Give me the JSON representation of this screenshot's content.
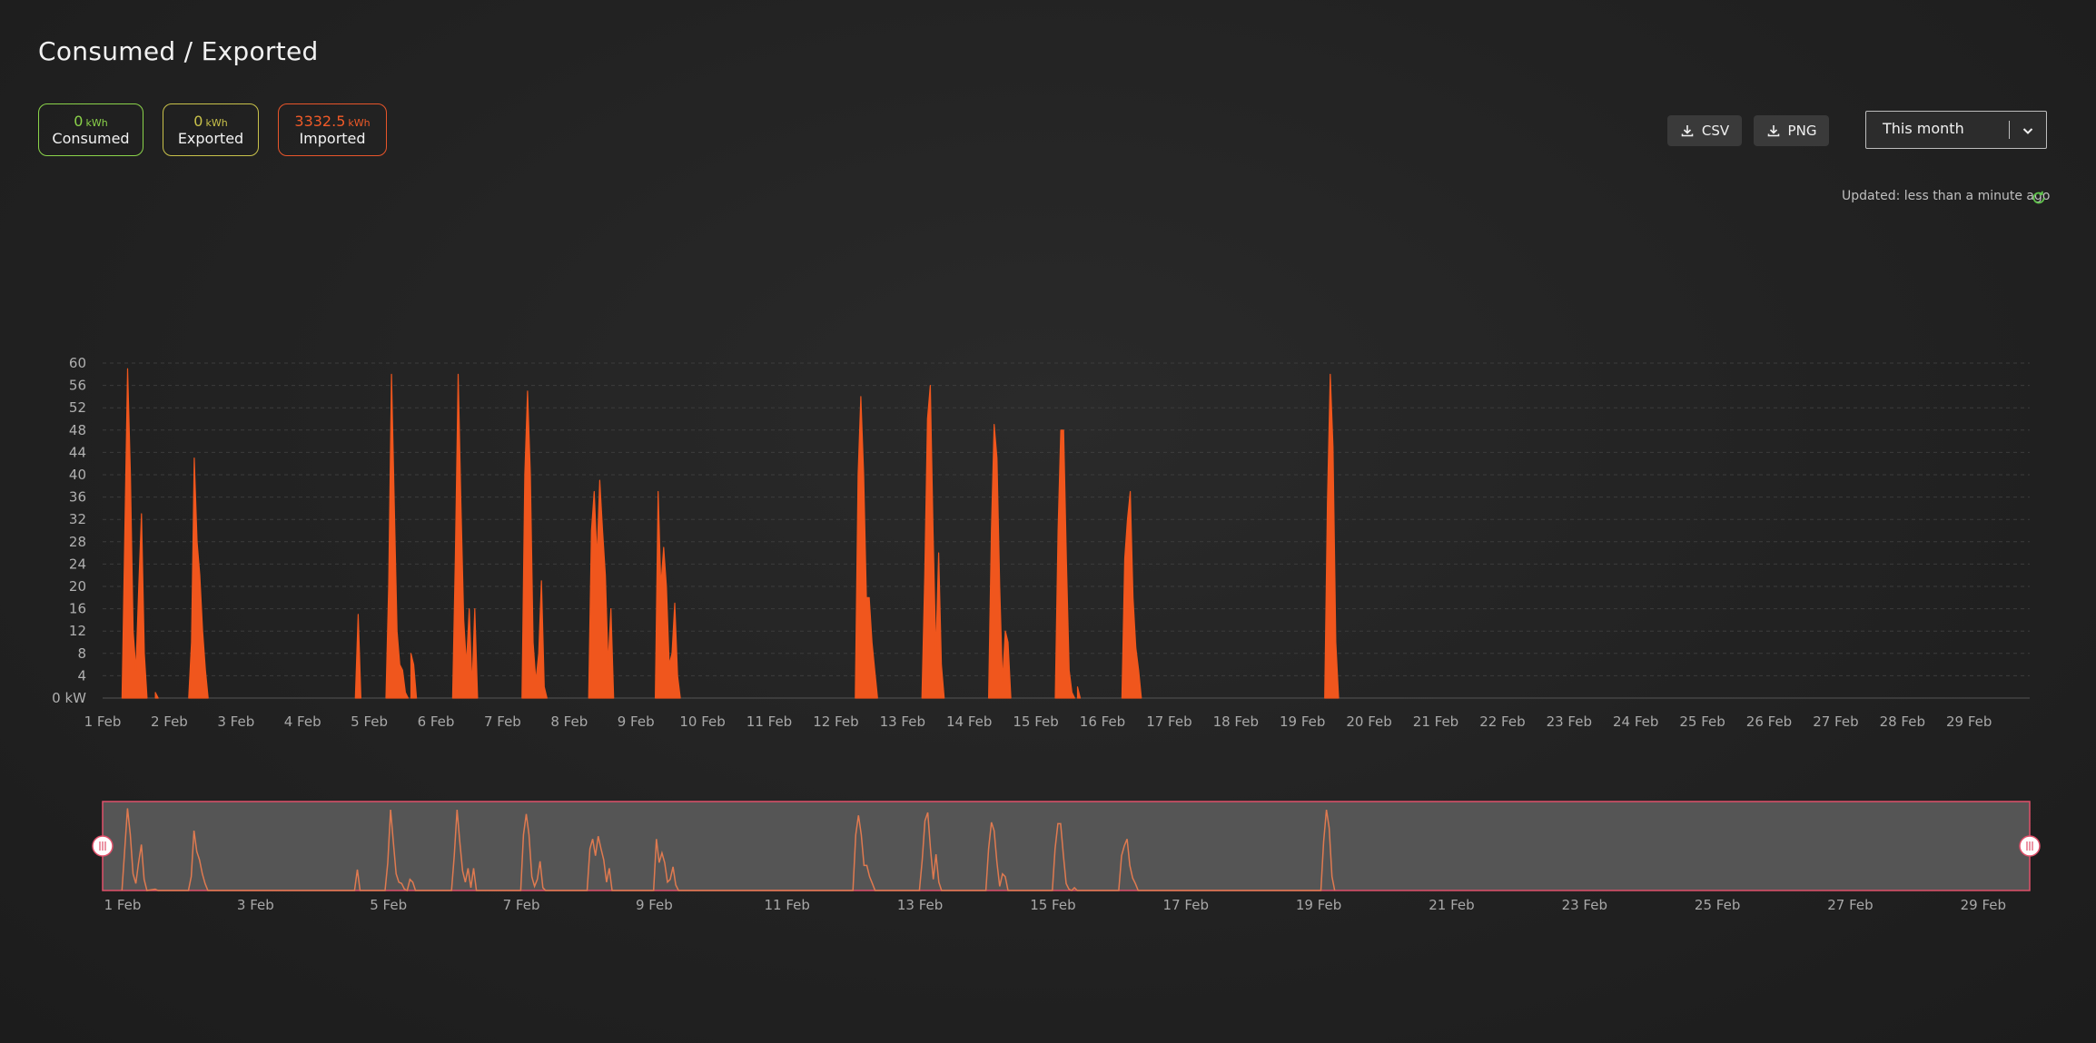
{
  "header": {
    "title": "Consumed / Exported"
  },
  "stats": [
    {
      "value": "0",
      "unit": "kWh",
      "label": "Consumed",
      "color": "#8bd34a"
    },
    {
      "value": "0",
      "unit": "kWh",
      "label": "Exported",
      "color": "#c9c24a"
    },
    {
      "value": "3332.5",
      "unit": "kWh",
      "label": "Imported",
      "color": "#f05a28"
    }
  ],
  "toolbar": {
    "csv_label": "CSV",
    "png_label": "PNG"
  },
  "period_select": {
    "value": "This month"
  },
  "status": {
    "updated": "Updated: less than a minute ago"
  },
  "colors": {
    "imported": "#f0561d",
    "scrollbar_border": "#e0506a",
    "refresh": "#5ec24a"
  },
  "chart_data": {
    "type": "area",
    "title": "",
    "xlabel": "",
    "ylabel": "",
    "y_unit": "kW",
    "ylim": [
      0,
      60
    ],
    "y_ticks": [
      "0 kW",
      "4",
      "8",
      "12",
      "16",
      "20",
      "24",
      "28",
      "32",
      "36",
      "40",
      "44",
      "48",
      "52",
      "56",
      "60"
    ],
    "x_ticks": [
      "1 Feb",
      "2 Feb",
      "3 Feb",
      "4 Feb",
      "5 Feb",
      "6 Feb",
      "7 Feb",
      "8 Feb",
      "9 Feb",
      "10 Feb",
      "11 Feb",
      "12 Feb",
      "13 Feb",
      "14 Feb",
      "15 Feb",
      "16 Feb",
      "17 Feb",
      "18 Feb",
      "19 Feb",
      "20 Feb",
      "21 Feb",
      "22 Feb",
      "23 Feb",
      "24 Feb",
      "25 Feb",
      "26 Feb",
      "27 Feb",
      "28 Feb",
      "29 Feb"
    ],
    "navigator_ticks": [
      "1 Feb",
      "3 Feb",
      "5 Feb",
      "7 Feb",
      "9 Feb",
      "11 Feb",
      "13 Feb",
      "15 Feb",
      "17 Feb",
      "19 Feb",
      "21 Feb",
      "23 Feb",
      "25 Feb",
      "27 Feb",
      "29 Feb"
    ],
    "grid": true,
    "legend": "none",
    "series": [
      {
        "name": "Imported",
        "points": [
          [
            "1 Feb 07:00",
            0
          ],
          [
            "1 Feb 08:00",
            30
          ],
          [
            "1 Feb 09:00",
            59
          ],
          [
            "1 Feb 10:00",
            40
          ],
          [
            "1 Feb 11:00",
            12
          ],
          [
            "1 Feb 12:00",
            5
          ],
          [
            "1 Feb 13:00",
            20
          ],
          [
            "1 Feb 14:00",
            33
          ],
          [
            "1 Feb 15:00",
            8
          ],
          [
            "1 Feb 16:00",
            0
          ],
          [
            "1 Feb 19:00",
            1
          ],
          [
            "1 Feb 20:00",
            0
          ],
          [
            "2 Feb 07:00",
            0
          ],
          [
            "2 Feb 08:00",
            10
          ],
          [
            "2 Feb 09:00",
            43
          ],
          [
            "2 Feb 10:00",
            28
          ],
          [
            "2 Feb 11:00",
            22
          ],
          [
            "2 Feb 12:00",
            12
          ],
          [
            "2 Feb 13:00",
            5
          ],
          [
            "2 Feb 14:00",
            0
          ],
          [
            "4 Feb 19:00",
            0
          ],
          [
            "4 Feb 20:00",
            15
          ],
          [
            "4 Feb 21:00",
            0
          ],
          [
            "5 Feb 06:00",
            0
          ],
          [
            "5 Feb 07:00",
            20
          ],
          [
            "5 Feb 08:00",
            58
          ],
          [
            "5 Feb 09:00",
            35
          ],
          [
            "5 Feb 10:00",
            12
          ],
          [
            "5 Feb 11:00",
            6
          ],
          [
            "5 Feb 12:00",
            5
          ],
          [
            "5 Feb 13:00",
            1
          ],
          [
            "5 Feb 14:00",
            0
          ],
          [
            "5 Feb 15:00",
            8
          ],
          [
            "5 Feb 16:00",
            6
          ],
          [
            "5 Feb 17:00",
            0
          ],
          [
            "6 Feb 06:00",
            0
          ],
          [
            "6 Feb 07:00",
            25
          ],
          [
            "6 Feb 08:00",
            58
          ],
          [
            "6 Feb 09:00",
            35
          ],
          [
            "6 Feb 10:00",
            14
          ],
          [
            "6 Feb 11:00",
            6
          ],
          [
            "6 Feb 12:00",
            16
          ],
          [
            "6 Feb 13:00",
            2
          ],
          [
            "6 Feb 14:00",
            16
          ],
          [
            "6 Feb 15:00",
            0
          ],
          [
            "7 Feb 07:00",
            0
          ],
          [
            "7 Feb 08:00",
            40
          ],
          [
            "7 Feb 09:00",
            55
          ],
          [
            "7 Feb 10:00",
            40
          ],
          [
            "7 Feb 11:00",
            10
          ],
          [
            "7 Feb 12:00",
            3
          ],
          [
            "7 Feb 13:00",
            8
          ],
          [
            "7 Feb 14:00",
            21
          ],
          [
            "7 Feb 15:00",
            2
          ],
          [
            "7 Feb 16:00",
            0
          ],
          [
            "8 Feb 07:00",
            0
          ],
          [
            "8 Feb 08:00",
            30
          ],
          [
            "8 Feb 09:00",
            37
          ],
          [
            "8 Feb 10:00",
            25
          ],
          [
            "8 Feb 11:00",
            39
          ],
          [
            "8 Feb 12:00",
            30
          ],
          [
            "8 Feb 13:00",
            22
          ],
          [
            "8 Feb 14:00",
            6
          ],
          [
            "8 Feb 15:00",
            16
          ],
          [
            "8 Feb 16:00",
            0
          ],
          [
            "9 Feb 07:00",
            0
          ],
          [
            "9 Feb 08:00",
            37
          ],
          [
            "9 Feb 09:00",
            20
          ],
          [
            "9 Feb 10:00",
            27
          ],
          [
            "9 Feb 11:00",
            20
          ],
          [
            "9 Feb 12:00",
            6
          ],
          [
            "9 Feb 13:00",
            8
          ],
          [
            "9 Feb 14:00",
            17
          ],
          [
            "9 Feb 15:00",
            4
          ],
          [
            "9 Feb 16:00",
            0
          ],
          [
            "12 Feb 07:00",
            0
          ],
          [
            "12 Feb 08:00",
            40
          ],
          [
            "12 Feb 09:00",
            54
          ],
          [
            "12 Feb 10:00",
            40
          ],
          [
            "12 Feb 11:00",
            18
          ],
          [
            "12 Feb 12:00",
            18
          ],
          [
            "12 Feb 13:00",
            10
          ],
          [
            "12 Feb 14:00",
            5
          ],
          [
            "12 Feb 15:00",
            0
          ],
          [
            "13 Feb 07:00",
            0
          ],
          [
            "13 Feb 08:00",
            22
          ],
          [
            "13 Feb 09:00",
            50
          ],
          [
            "13 Feb 10:00",
            56
          ],
          [
            "13 Feb 11:00",
            30
          ],
          [
            "13 Feb 12:00",
            8
          ],
          [
            "13 Feb 13:00",
            26
          ],
          [
            "13 Feb 14:00",
            6
          ],
          [
            "13 Feb 15:00",
            0
          ],
          [
            "14 Feb 07:00",
            0
          ],
          [
            "14 Feb 08:00",
            30
          ],
          [
            "14 Feb 09:00",
            49
          ],
          [
            "14 Feb 10:00",
            43
          ],
          [
            "14 Feb 11:00",
            20
          ],
          [
            "14 Feb 12:00",
            3
          ],
          [
            "14 Feb 13:00",
            12
          ],
          [
            "14 Feb 14:00",
            10
          ],
          [
            "14 Feb 15:00",
            0
          ],
          [
            "15 Feb 07:00",
            0
          ],
          [
            "15 Feb 08:00",
            30
          ],
          [
            "15 Feb 09:00",
            48
          ],
          [
            "15 Feb 10:00",
            48
          ],
          [
            "15 Feb 11:00",
            25
          ],
          [
            "15 Feb 12:00",
            5
          ],
          [
            "15 Feb 13:00",
            1
          ],
          [
            "15 Feb 14:00",
            0
          ],
          [
            "15 Feb 15:00",
            2
          ],
          [
            "15 Feb 16:00",
            0
          ],
          [
            "16 Feb 07:00",
            0
          ],
          [
            "16 Feb 08:00",
            25
          ],
          [
            "16 Feb 09:00",
            32
          ],
          [
            "16 Feb 10:00",
            37
          ],
          [
            "16 Feb 11:00",
            18
          ],
          [
            "16 Feb 12:00",
            9
          ],
          [
            "16 Feb 13:00",
            5
          ],
          [
            "16 Feb 14:00",
            0
          ],
          [
            "19 Feb 08:00",
            0
          ],
          [
            "19 Feb 09:00",
            35
          ],
          [
            "19 Feb 10:00",
            58
          ],
          [
            "19 Feb 11:00",
            45
          ],
          [
            "19 Feb 12:00",
            10
          ],
          [
            "19 Feb 13:00",
            0
          ]
        ]
      }
    ]
  }
}
